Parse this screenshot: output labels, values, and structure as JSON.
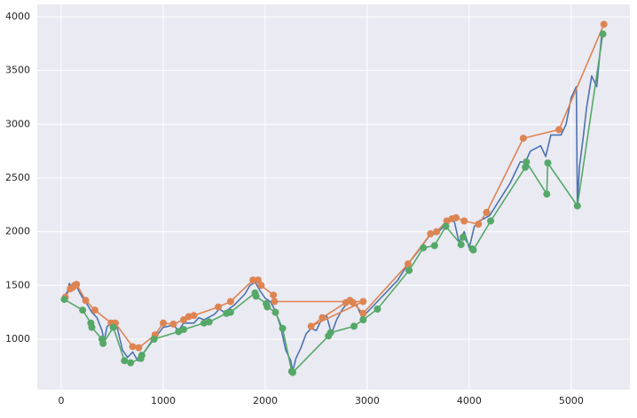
{
  "chart_data": {
    "type": "line",
    "xlim": [
      -235,
      5575
    ],
    "ylim": [
      530,
      4115
    ],
    "xticks": [
      0,
      1000,
      2000,
      3000,
      4000,
      5000
    ],
    "yticks": [
      1000,
      1500,
      2000,
      2500,
      3000,
      3500,
      4000
    ],
    "grid": true,
    "series": [
      {
        "color": "#4c72b0",
        "marker": "none",
        "x": [
          30,
          60,
          80,
          100,
          150,
          200,
          250,
          300,
          350,
          400,
          420,
          450,
          500,
          550,
          600,
          650,
          700,
          750,
          800,
          900,
          950,
          1000,
          1100,
          1150,
          1200,
          1300,
          1350,
          1400,
          1500,
          1550,
          1600,
          1700,
          1800,
          1850,
          1900,
          1950,
          2000,
          2050,
          2100,
          2150,
          2200,
          2250,
          2270,
          2300,
          2350,
          2400,
          2450,
          2500,
          2550,
          2600,
          2650,
          2700,
          2750,
          2800,
          2850,
          2900,
          2950,
          3000,
          3100,
          3200,
          3300,
          3400,
          3500,
          3600,
          3700,
          3800,
          3850,
          3900,
          3950,
          4000,
          4050,
          4100,
          4200,
          4300,
          4400,
          4500,
          4550,
          4600,
          4700,
          4750,
          4800,
          4900,
          4950,
          5000,
          5050,
          5060,
          5080,
          5120,
          5150,
          5200,
          5250,
          5300
        ],
        "values": [
          1400,
          1440,
          1520,
          1470,
          1490,
          1400,
          1330,
          1250,
          1200,
          1080,
          980,
          1120,
          1150,
          1100,
          900,
          830,
          880,
          800,
          860,
          1000,
          1050,
          1110,
          1130,
          1080,
          1150,
          1150,
          1200,
          1180,
          1230,
          1280,
          1250,
          1320,
          1420,
          1500,
          1530,
          1450,
          1380,
          1350,
          1260,
          1120,
          900,
          800,
          700,
          820,
          920,
          1050,
          1100,
          1080,
          1180,
          1220,
          1050,
          1180,
          1270,
          1330,
          1380,
          1310,
          1200,
          1250,
          1350,
          1450,
          1550,
          1700,
          1820,
          1950,
          2000,
          2100,
          2110,
          1900,
          2000,
          1850,
          2050,
          2100,
          2150,
          2300,
          2450,
          2650,
          2650,
          2750,
          2800,
          2700,
          2900,
          2900,
          3000,
          3250,
          3350,
          2250,
          2600,
          2900,
          3150,
          3450,
          3350,
          3850
        ]
      },
      {
        "color": "#dd8452",
        "marker": "o",
        "x": [
          40,
          90,
          110,
          130,
          150,
          240,
          330,
          490,
          530,
          700,
          760,
          920,
          1000,
          1100,
          1200,
          1250,
          1300,
          1540,
          1660,
          1880,
          1930,
          1960,
          2080,
          2090,
          2960,
          2450,
          2560,
          2790,
          2830,
          2860,
          2960,
          3400,
          3620,
          3680,
          3780,
          3830,
          3870,
          3950,
          4090,
          4170,
          4530,
          4880,
          5320
        ],
        "values": [
          1390,
          1470,
          1480,
          1500,
          1510,
          1360,
          1270,
          1150,
          1150,
          930,
          920,
          1040,
          1150,
          1140,
          1180,
          1210,
          1220,
          1300,
          1350,
          1550,
          1550,
          1500,
          1410,
          1350,
          1350,
          1120,
          1200,
          1340,
          1360,
          1340,
          1240,
          1700,
          1980,
          2000,
          2100,
          2120,
          2130,
          2100,
          2070,
          2180,
          2870,
          2950,
          3930
        ]
      },
      {
        "color": "#55a868",
        "marker": "o",
        "x": [
          30,
          210,
          290,
          300,
          400,
          410,
          510,
          620,
          680,
          780,
          790,
          910,
          1150,
          1200,
          1400,
          1450,
          1620,
          1660,
          1900,
          1910,
          2010,
          2020,
          2100,
          2170,
          2260,
          2270,
          2620,
          2640,
          2870,
          2960,
          3100,
          3410,
          3550,
          3660,
          3770,
          3920,
          3940,
          4030,
          4040,
          4210,
          4550,
          4560,
          4760,
          4770,
          5060,
          5310
        ],
        "values": [
          1370,
          1270,
          1150,
          1110,
          1000,
          960,
          1110,
          800,
          780,
          820,
          850,
          1000,
          1070,
          1090,
          1150,
          1160,
          1240,
          1250,
          1430,
          1400,
          1330,
          1300,
          1250,
          1100,
          700,
          690,
          1030,
          1060,
          1120,
          1180,
          1280,
          1640,
          1850,
          1870,
          2050,
          1880,
          1950,
          1840,
          1830,
          2100,
          2600,
          2650,
          2350,
          2640,
          2240,
          3840
        ]
      }
    ]
  }
}
